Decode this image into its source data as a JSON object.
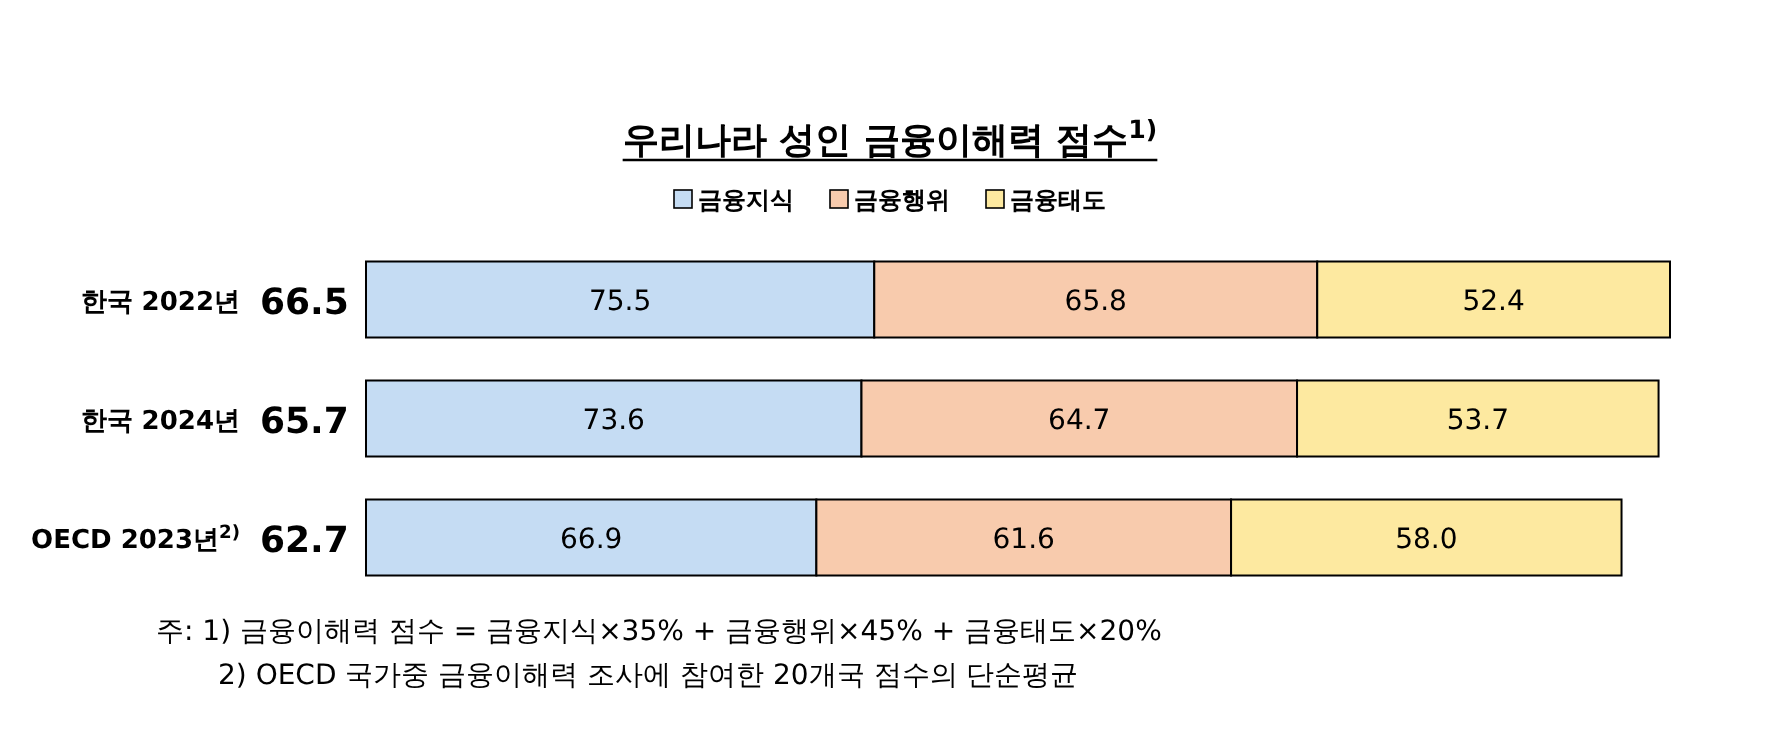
{
  "chart_data": {
    "type": "bar",
    "orientation": "horizontal",
    "stacked": true,
    "title": "우리나라 성인 금융이해력 점수$^{1)}$",
    "categories": [
      "한국 2022년",
      "한국 2024년",
      "OECD 2023년$^{2)}$"
    ],
    "series": [
      {
        "name": "금융지식",
        "color": "#c5dcf3",
        "values": [
          75.5,
          73.6,
          66.9
        ],
        "value_labels": [
          "75.5",
          "73.6",
          "66.9"
        ]
      },
      {
        "name": "금융행위",
        "color": "#f8cbad",
        "values": [
          65.8,
          64.7,
          61.6
        ],
        "value_labels": [
          "65.8",
          "64.7",
          "61.6"
        ]
      },
      {
        "name": "금융태도",
        "color": "#fde9a0",
        "values": [
          52.4,
          53.7,
          58.0
        ],
        "value_labels": [
          "52.4",
          "53.7",
          "58.0"
        ]
      }
    ],
    "legend": "top",
    "annotations": [
      "주: 1) 금융이해력 점수 = 금융지식×35% + 금융행위×45% + 금융태도×20%",
      "2) OECD 국가중 금융이해력 조사에 참여한 20개국 점수의 단순평균",
      "66.5",
      "65.7",
      "62.7"
    ],
    "data_labels": true
  }
}
